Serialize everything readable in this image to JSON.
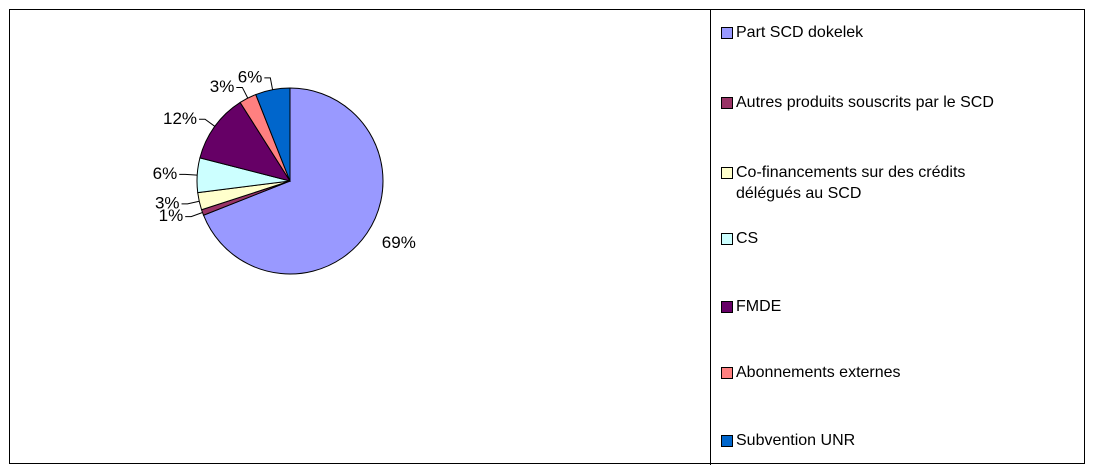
{
  "chart_data": {
    "type": "pie",
    "categories": [
      "Part SCD dokelek",
      "Autres produits souscrits par le SCD",
      "Co-financements sur des crédits délégués au SCD",
      "CS",
      "FMDE",
      "Abonnements externes",
      "Subvention UNR"
    ],
    "values": [
      69,
      1,
      3,
      6,
      12,
      3,
      6
    ],
    "value_labels": [
      "69%",
      "1%",
      "3%",
      "6%",
      "12%",
      "3%",
      "6%"
    ],
    "colors": [
      "#9999ff",
      "#993366",
      "#ffffcc",
      "#ccffff",
      "#660066",
      "#ff8080",
      "#0066cc"
    ],
    "legend": "right"
  }
}
